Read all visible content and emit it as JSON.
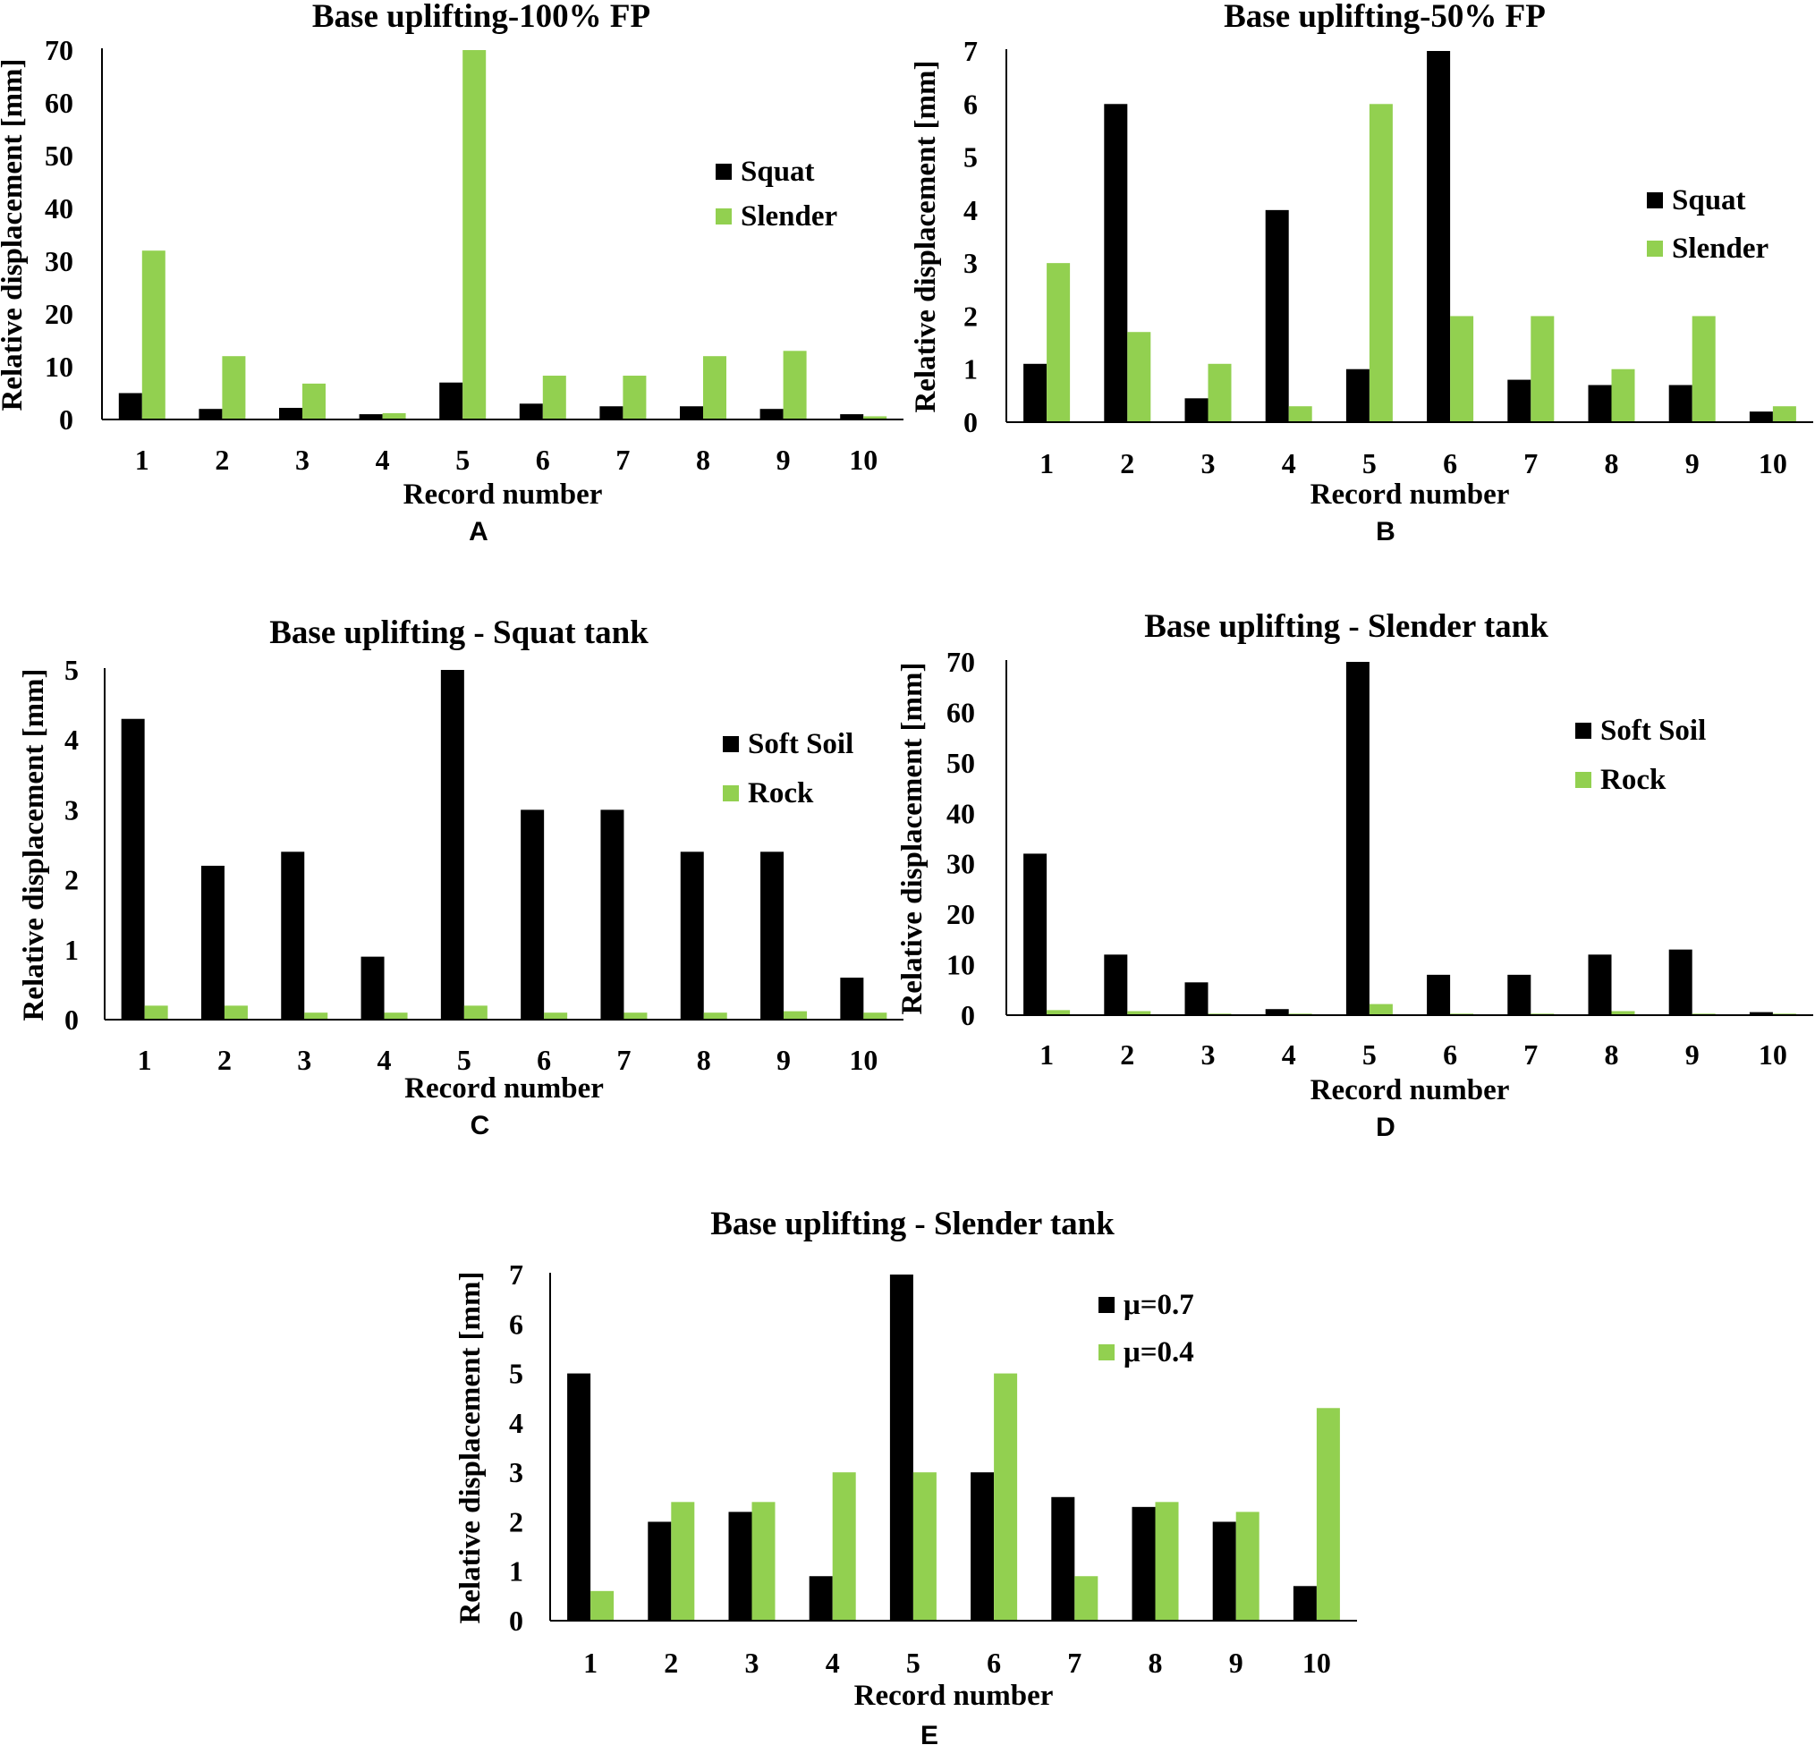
{
  "colors": {
    "black_series": "#000000",
    "green_series": "#92D050"
  },
  "chart_data": [
    {
      "type": "bar",
      "panel": "A",
      "title": "Base uplifting-100% FP",
      "xlabel": "Record number",
      "ylabel": "Relative displacement [mm]",
      "categories": [
        "1",
        "2",
        "3",
        "4",
        "5",
        "6",
        "7",
        "8",
        "9",
        "10"
      ],
      "yticks": [
        0,
        10,
        20,
        30,
        40,
        50,
        60,
        70
      ],
      "ylim": [
        0,
        70
      ],
      "legend_position": "right",
      "series": [
        {
          "name": "Squat",
          "color": "#000000",
          "values": [
            5,
            2,
            2.2,
            1,
            7,
            3,
            2.5,
            2.5,
            2,
            1
          ]
        },
        {
          "name": "Slender",
          "color": "#92D050",
          "values": [
            32,
            12,
            6.8,
            1.2,
            70,
            8.3,
            8.3,
            12,
            13,
            0.6
          ]
        }
      ]
    },
    {
      "type": "bar",
      "panel": "B",
      "title": "Base uplifting-50% FP",
      "xlabel": "Record number",
      "ylabel": "Relative displacement [mm]",
      "categories": [
        "1",
        "2",
        "3",
        "4",
        "5",
        "6",
        "7",
        "8",
        "9",
        "10"
      ],
      "yticks": [
        0,
        1,
        2,
        3,
        4,
        5,
        6,
        7
      ],
      "ylim": [
        0,
        7
      ],
      "legend_position": "right",
      "series": [
        {
          "name": "Squat",
          "color": "#000000",
          "values": [
            1.1,
            6,
            0.45,
            4,
            1,
            7,
            0.8,
            0.7,
            0.7,
            0.2
          ]
        },
        {
          "name": "Slender",
          "color": "#92D050",
          "values": [
            3,
            1.7,
            1.1,
            0.3,
            6,
            2,
            2,
            1,
            2,
            0.3
          ]
        }
      ]
    },
    {
      "type": "bar",
      "panel": "C",
      "title": "Base uplifting - Squat tank",
      "xlabel": "Record number",
      "ylabel": "Relative displacement [mm]",
      "categories": [
        "1",
        "2",
        "3",
        "4",
        "5",
        "6",
        "7",
        "8",
        "9",
        "10"
      ],
      "yticks": [
        0,
        1,
        2,
        3,
        4,
        5
      ],
      "ylim": [
        0,
        5
      ],
      "legend_position": "right",
      "series": [
        {
          "name": "Soft Soil",
          "color": "#000000",
          "values": [
            4.3,
            2.2,
            2.4,
            0.9,
            5,
            3,
            3,
            2.4,
            2.4,
            0.6
          ]
        },
        {
          "name": "Rock",
          "color": "#92D050",
          "values": [
            0.2,
            0.2,
            0.1,
            0.1,
            0.2,
            0.1,
            0.1,
            0.1,
            0.12,
            0.1
          ]
        }
      ]
    },
    {
      "type": "bar",
      "panel": "D",
      "title": "Base uplifting - Slender tank",
      "xlabel": "Record number",
      "ylabel": "Relative displacement [mm]",
      "categories": [
        "1",
        "2",
        "3",
        "4",
        "5",
        "6",
        "7",
        "8",
        "9",
        "10"
      ],
      "yticks": [
        0,
        10,
        20,
        30,
        40,
        50,
        60,
        70
      ],
      "ylim": [
        0,
        70
      ],
      "legend_position": "right",
      "series": [
        {
          "name": "Soft Soil",
          "color": "#000000",
          "values": [
            32,
            12,
            6.5,
            1.2,
            70,
            8,
            8,
            12,
            13,
            0.6
          ]
        },
        {
          "name": "Rock",
          "color": "#92D050",
          "values": [
            1,
            0.8,
            0.3,
            0.3,
            2.2,
            0.3,
            0.3,
            0.8,
            0.3,
            0.3
          ]
        }
      ]
    },
    {
      "type": "bar",
      "panel": "E",
      "title": "Base uplifting - Slender tank",
      "xlabel": "Record number",
      "ylabel": "Relative displacement [mm]",
      "categories": [
        "1",
        "2",
        "3",
        "4",
        "5",
        "6",
        "7",
        "8",
        "9",
        "10"
      ],
      "yticks": [
        0,
        1,
        2,
        3,
        4,
        5,
        6,
        7
      ],
      "ylim": [
        0,
        7
      ],
      "legend_position": "right",
      "series": [
        {
          "name": "μ=0.7",
          "color": "#000000",
          "values": [
            5,
            2,
            2.2,
            0.9,
            7,
            3,
            2.5,
            2.3,
            2,
            0.7
          ]
        },
        {
          "name": "μ=0.4",
          "color": "#92D050",
          "values": [
            0.6,
            2.4,
            2.4,
            3,
            3,
            5,
            0.9,
            2.4,
            2.2,
            4.3
          ]
        }
      ]
    }
  ]
}
